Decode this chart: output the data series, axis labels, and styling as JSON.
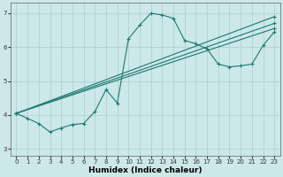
{
  "xlabel": "Humidex (Indice chaleur)",
  "bg_color": "#cce8e8",
  "line_color": "#1a7a6e",
  "grid_color": "#aacfcf",
  "xlim": [
    -0.5,
    23.5
  ],
  "ylim": [
    2.8,
    7.3
  ],
  "xticks": [
    0,
    1,
    2,
    3,
    4,
    5,
    6,
    7,
    8,
    9,
    10,
    11,
    12,
    13,
    14,
    15,
    16,
    17,
    18,
    19,
    20,
    21,
    22,
    23
  ],
  "yticks": [
    3,
    4,
    5,
    6,
    7
  ],
  "line_main": {
    "x": [
      0,
      1,
      2,
      3,
      4,
      5,
      6,
      7,
      8,
      9,
      10,
      11,
      12,
      13,
      14,
      15,
      16,
      17,
      18,
      19,
      20,
      21,
      22,
      23
    ],
    "y": [
      4.05,
      3.9,
      3.75,
      3.5,
      3.62,
      3.72,
      3.75,
      4.1,
      4.75,
      4.35,
      6.25,
      6.65,
      7.0,
      6.95,
      6.85,
      6.2,
      6.1,
      5.95,
      5.5,
      5.42,
      5.45,
      5.5,
      6.05,
      6.45
    ]
  },
  "lines_straight": [
    {
      "x": [
        0,
        23
      ],
      "y": [
        4.05,
        6.9
      ]
    },
    {
      "x": [
        0,
        23
      ],
      "y": [
        4.05,
        6.7
      ]
    },
    {
      "x": [
        0,
        23
      ],
      "y": [
        4.05,
        6.55
      ]
    }
  ],
  "xlabel_fontsize": 6.5,
  "xlabel_fontweight": "bold",
  "tick_fontsize": 5.0,
  "linewidth": 0.8,
  "markersize": 3.0,
  "markeredgewidth": 0.8
}
